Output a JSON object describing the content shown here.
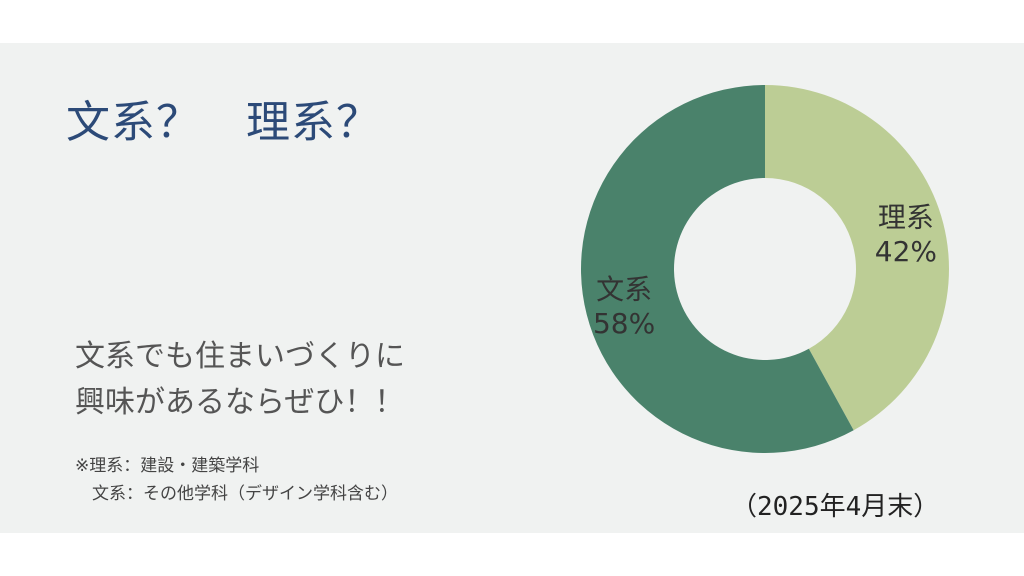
{
  "title": "文系？　理系？",
  "lead": [
    "文系でも住まいづくりに",
    "興味があるならぜひ！！"
  ],
  "notes": [
    "※理系：建設・建築学科",
    "　文系：その他学科（デザイン学科含む）"
  ],
  "as_of": "（2025年4月末）",
  "colors": {
    "science": "#bccd95",
    "humanities": "#4a826b",
    "background": "#f0f2f1",
    "title": "#2c4a78"
  },
  "chart_data": {
    "type": "pie",
    "donut": true,
    "categories": [
      "理系",
      "文系"
    ],
    "values": [
      42,
      58
    ],
    "value_labels": [
      "42%",
      "58%"
    ],
    "colors": [
      "#bccd95",
      "#4a826b"
    ],
    "start": "12 o'clock, clockwise"
  }
}
